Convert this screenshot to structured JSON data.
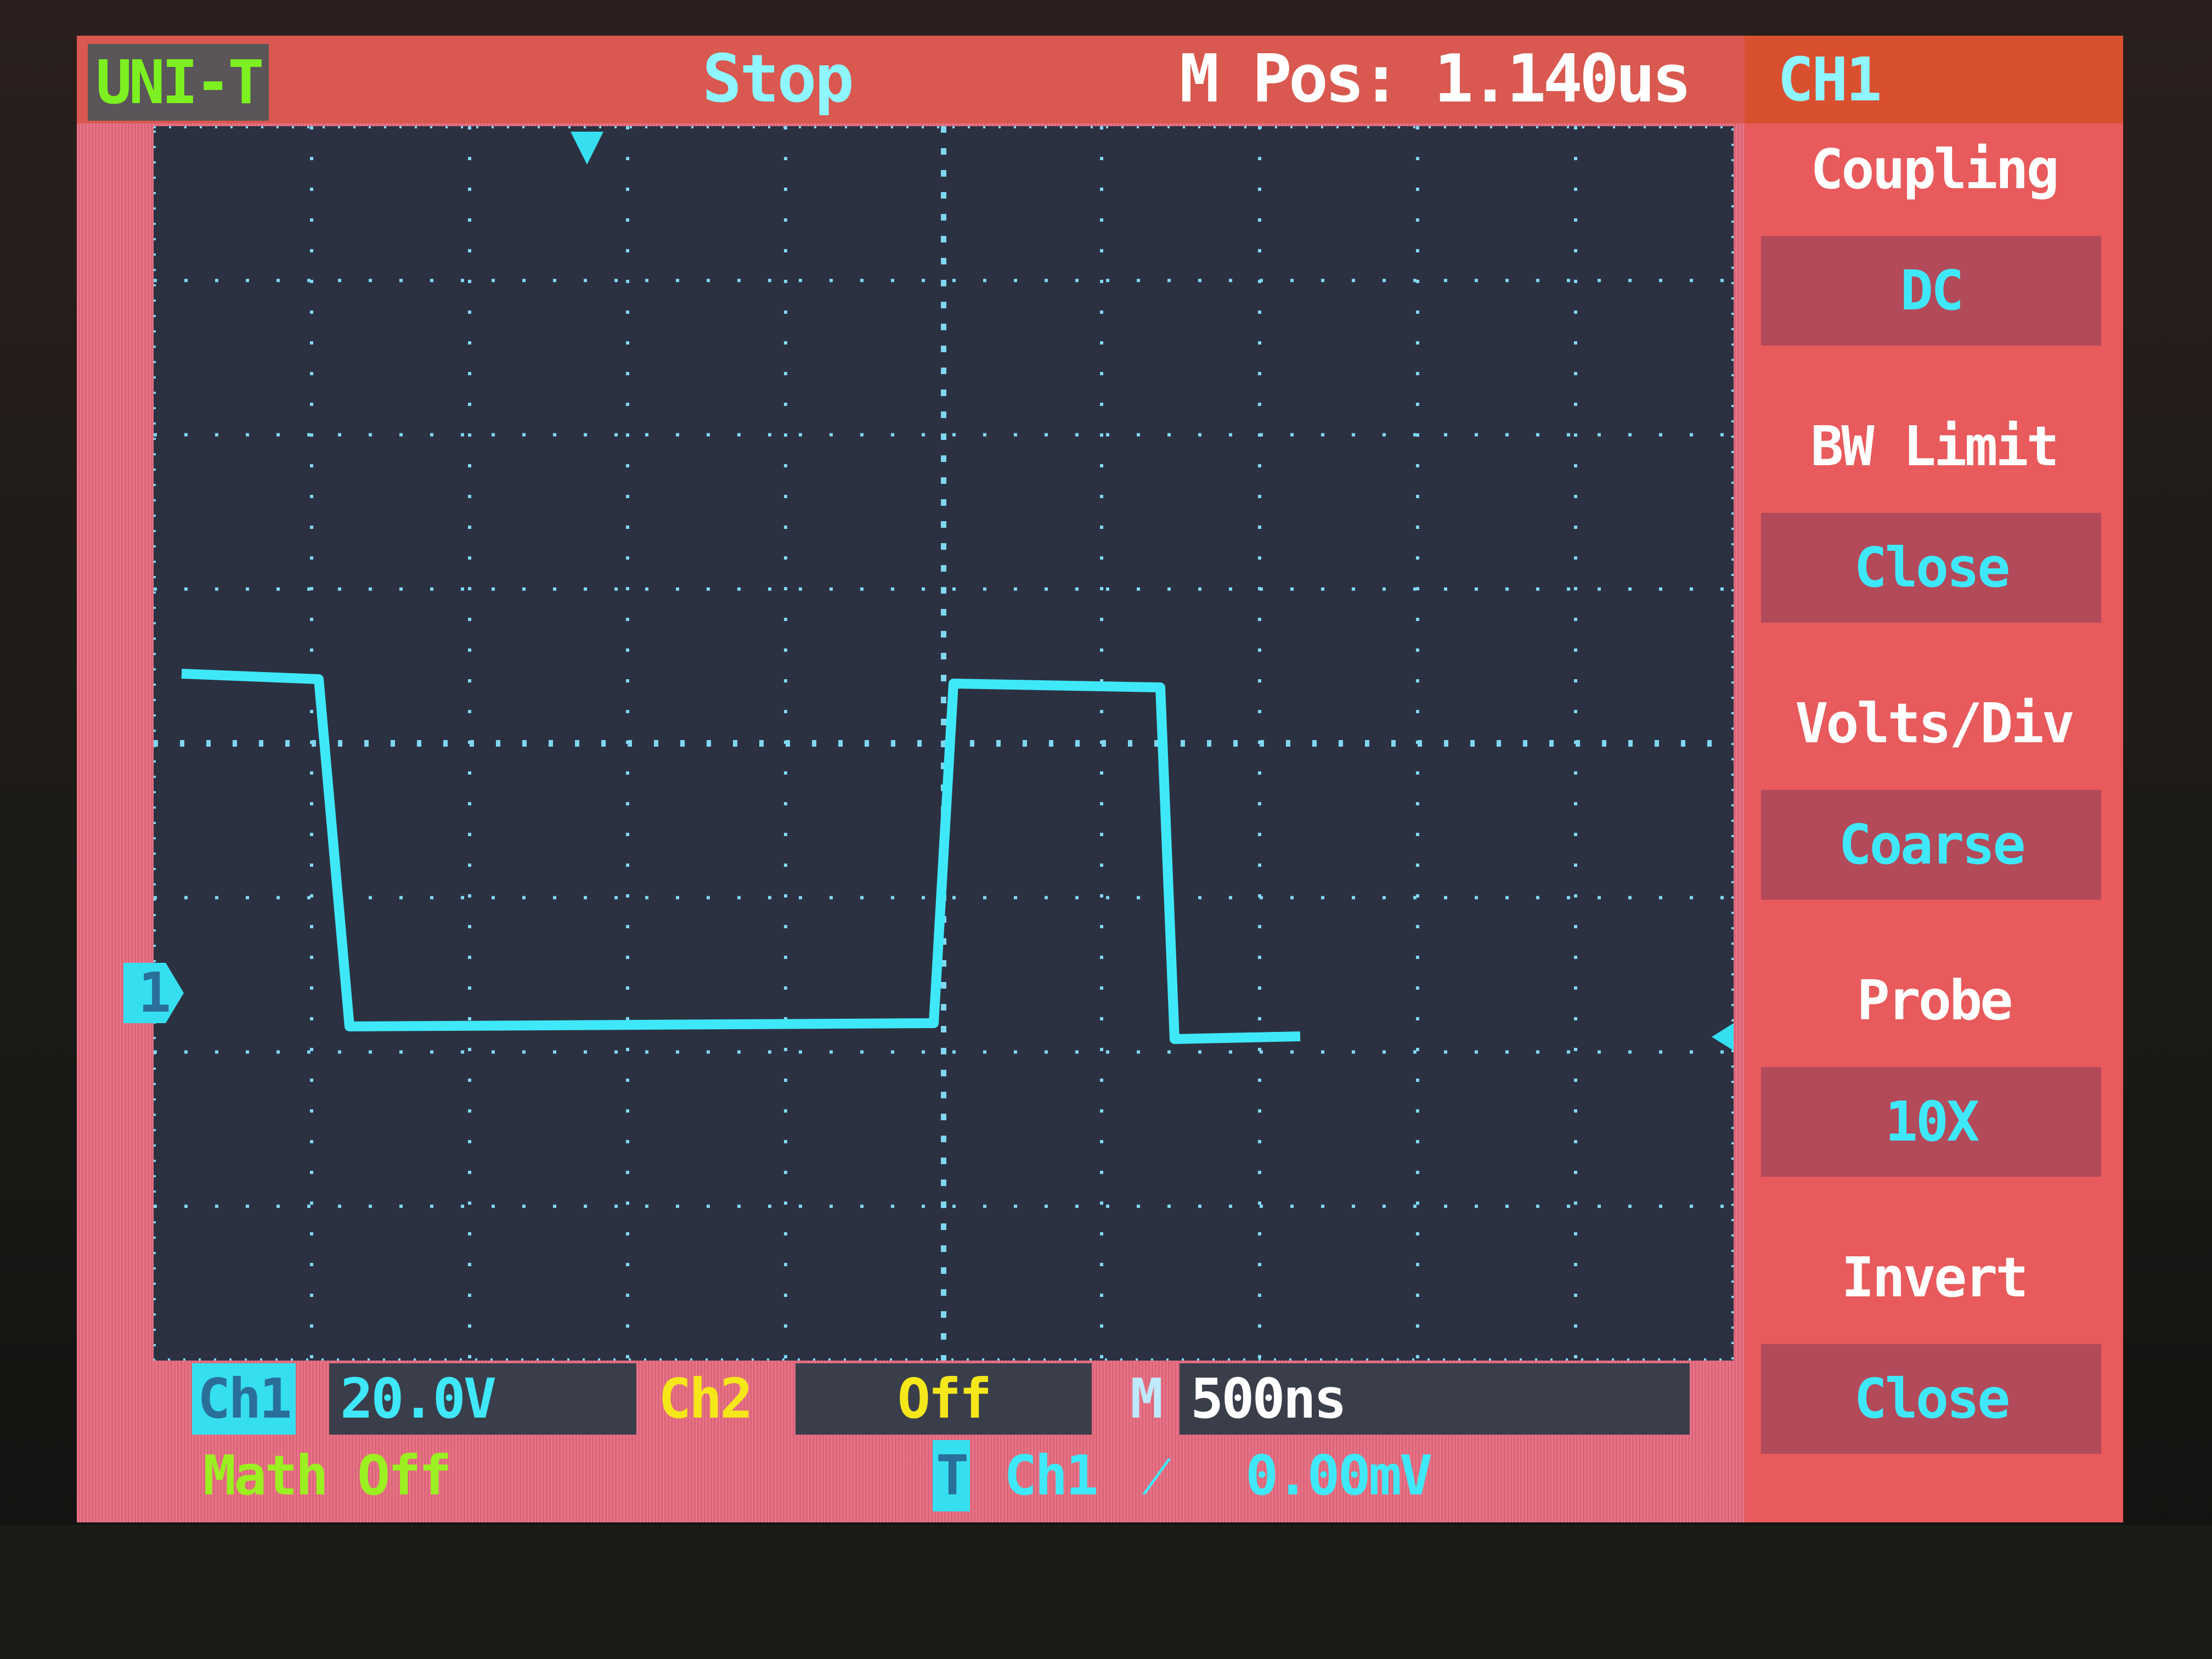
{
  "header": {
    "logo": "UNI-T",
    "run_status": "Stop",
    "m_pos": "M Pos: 1.140us"
  },
  "menu": {
    "title": "CH1",
    "items": [
      {
        "label": "Coupling",
        "value": "DC"
      },
      {
        "label": "BW  Limit",
        "value": "Close"
      },
      {
        "label": "Volts/Div",
        "value": "Coarse"
      },
      {
        "label": "Probe",
        "value": "10X"
      },
      {
        "label": "Invert",
        "value": "Close"
      }
    ]
  },
  "status_bar": {
    "ch1_label": "Ch1",
    "ch1_scale": "20.0V",
    "ch2_label": "Ch2",
    "ch2_scale": "Off",
    "timebase_label": "M",
    "timebase": "500ns",
    "math": "Math Off",
    "trigger_icon": "T",
    "trigger_source": "Ch1",
    "trigger_slope": "rising-edge-icon",
    "trigger_level": "0.00mV"
  },
  "channel_marker": "1",
  "colors": {
    "trace": "#3fe8f8",
    "ch2": "#f5e71a",
    "logo": "#7cf020",
    "background": "#e86a7e",
    "grid_bg": "#2c3142"
  }
}
